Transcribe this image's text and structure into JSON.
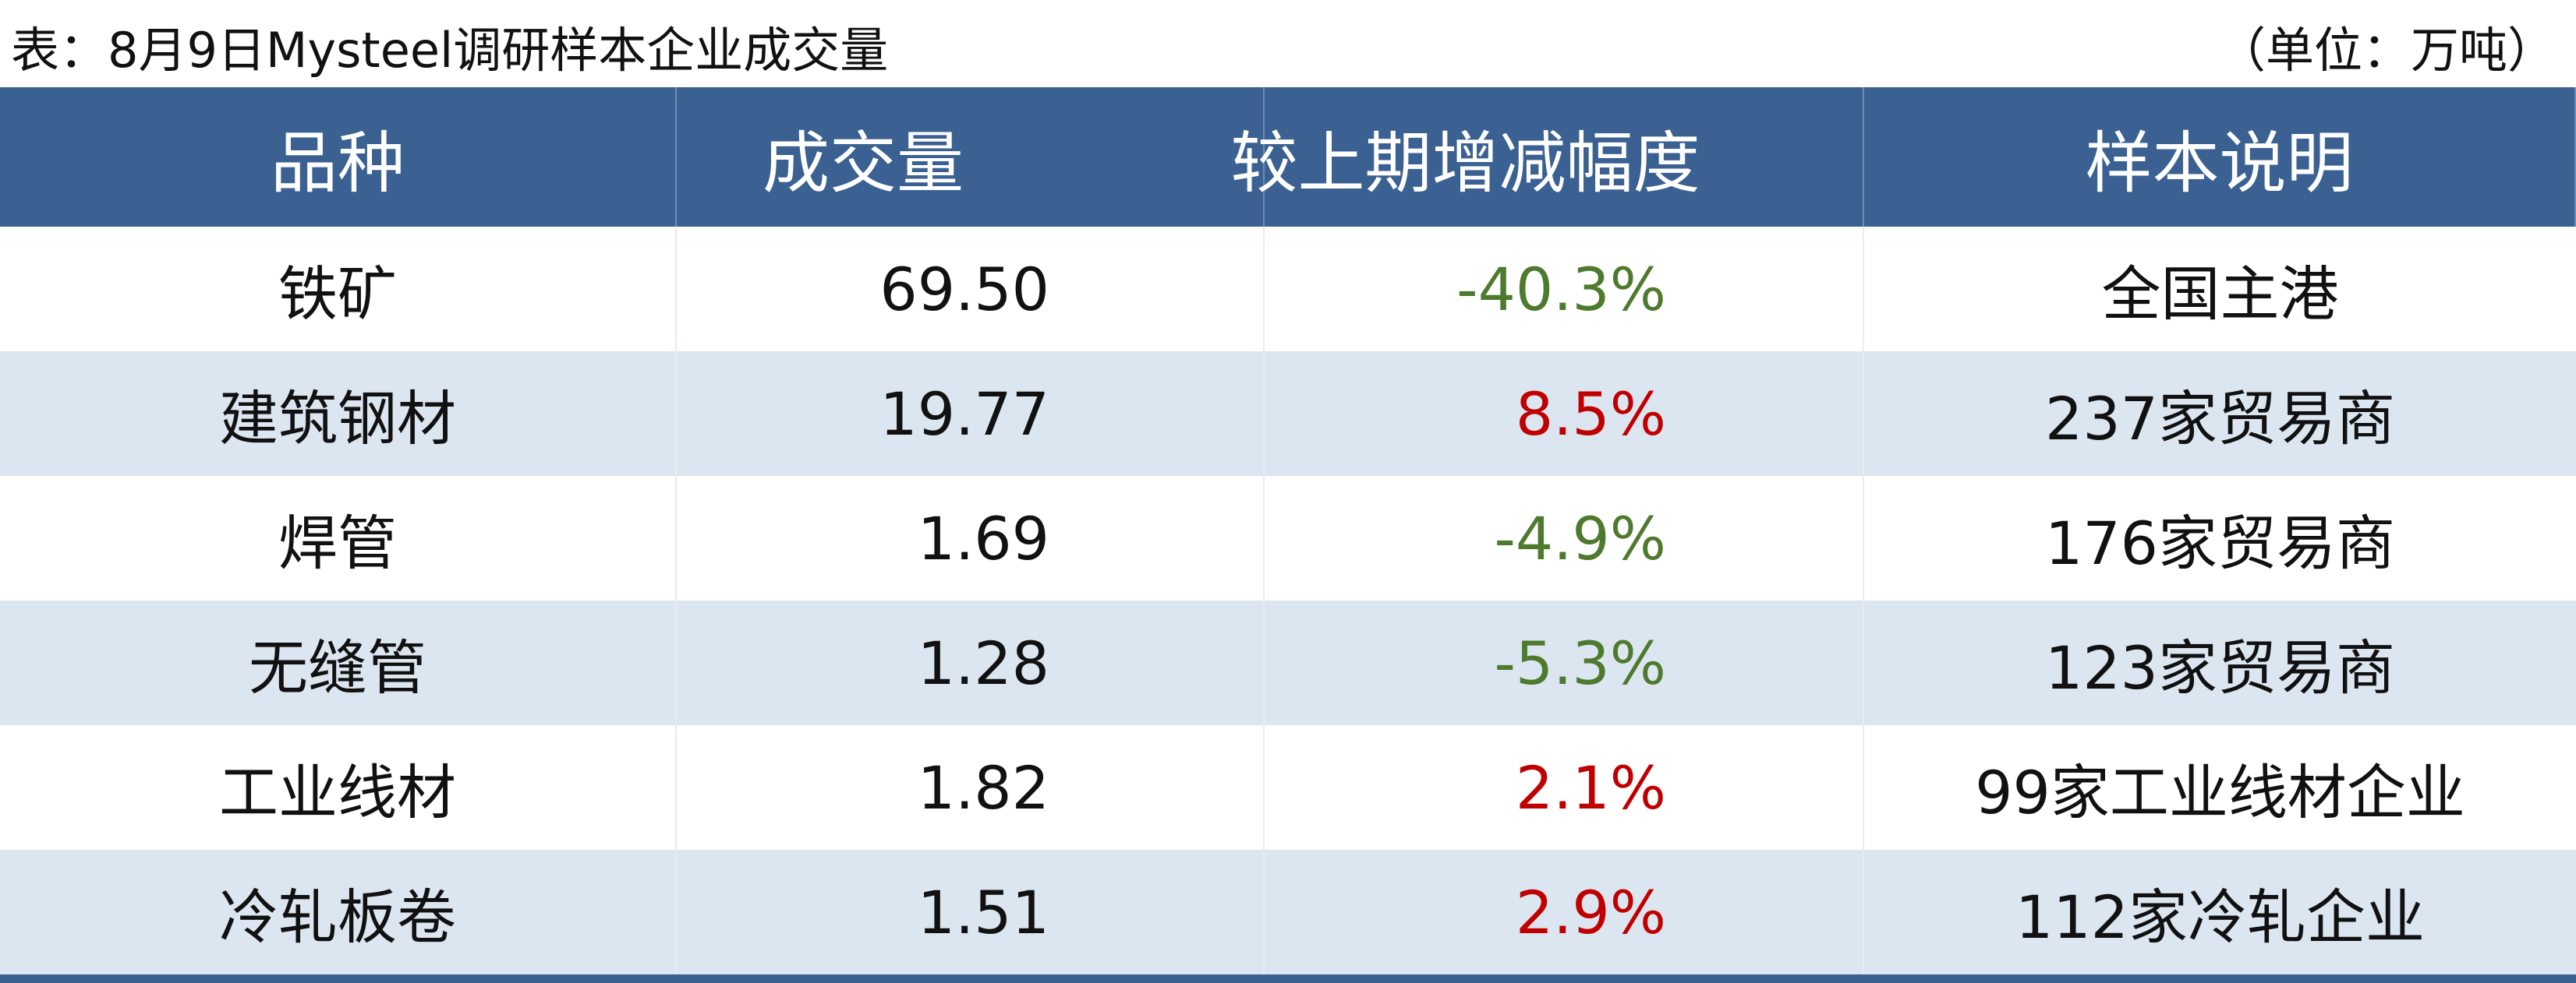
{
  "header": {
    "title": "表：8月9日Mysteel调研样本企业成交量",
    "unit": "（单位：万吨）"
  },
  "table": {
    "columns": [
      "品种",
      "成交量",
      "较上期增减幅度",
      "样本说明"
    ],
    "rows": [
      [
        "铁矿",
        "69.50",
        "-40.3%",
        "全国主港"
      ],
      [
        "建筑钢材",
        "19.77",
        "8.5%",
        "237家贸易商"
      ],
      [
        "焊管",
        "1.69",
        "-4.9%",
        "176家贸易商"
      ],
      [
        "无缝管",
        "1.28",
        "-5.3%",
        "123家贸易商"
      ],
      [
        "工业线材",
        "1.82",
        "2.1%",
        "99家工业线材企业"
      ],
      [
        "冷轧板卷",
        "1.51",
        "2.9%",
        "112家冷轧企业"
      ]
    ]
  }
}
